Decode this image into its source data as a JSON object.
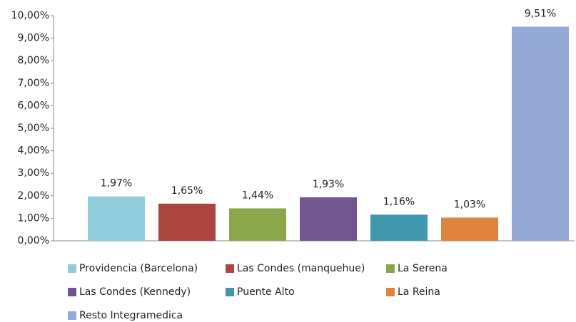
{
  "chart_data": {
    "type": "bar",
    "categories": [
      null
    ],
    "series": [
      {
        "name": "Providencia (Barcelona)",
        "color": "#92cddc",
        "values": [
          1.97
        ],
        "value_labels": [
          "1,97%"
        ]
      },
      {
        "name": "Las Condes (manquehue)",
        "color": "#ab4542",
        "values": [
          1.65
        ],
        "value_labels": [
          "1,65%"
        ]
      },
      {
        "name": "La Serena",
        "color": "#8aa74c",
        "values": [
          1.44
        ],
        "value_labels": [
          "1,44%"
        ]
      },
      {
        "name": "Las Condes (Kennedy)",
        "color": "#74568f",
        "values": [
          1.93
        ],
        "value_labels": [
          "1,93%"
        ]
      },
      {
        "name": "Puente Alto",
        "color": "#3f98ae",
        "values": [
          1.16
        ],
        "value_labels": [
          "1,16%"
        ]
      },
      {
        "name": "La Reina",
        "color": "#df843e",
        "values": [
          1.03
        ],
        "value_labels": [
          "1,03%"
        ]
      },
      {
        "name": "Resto Integramedica",
        "color": "#94a9d3",
        "values": [
          9.51
        ],
        "value_labels": [
          "9,51%"
        ]
      }
    ],
    "ylim": [
      0,
      10
    ],
    "yticks": [
      {
        "value": 0,
        "label": "0,00%"
      },
      {
        "value": 1,
        "label": "1,00%"
      },
      {
        "value": 2,
        "label": "2,00%"
      },
      {
        "value": 3,
        "label": "3,00%"
      },
      {
        "value": 4,
        "label": "4,00%"
      },
      {
        "value": 5,
        "label": "5,00%"
      },
      {
        "value": 6,
        "label": "6,00%"
      },
      {
        "value": 7,
        "label": "7,00%"
      },
      {
        "value": 8,
        "label": "8,00%"
      },
      {
        "value": 9,
        "label": "9,00%"
      },
      {
        "value": 10,
        "label": "10,00%"
      }
    ],
    "grid": false,
    "legend": "bottom"
  }
}
